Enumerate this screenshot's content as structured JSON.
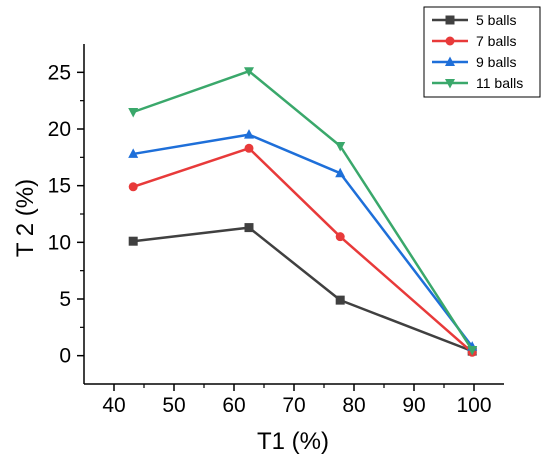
{
  "chart_data": {
    "type": "line",
    "xlabel": "T1 (%)",
    "ylabel": "T 2 (%)",
    "xlim": [
      35,
      105
    ],
    "ylim": [
      -2.5,
      27.5
    ],
    "xticks": [
      40,
      50,
      60,
      70,
      80,
      90,
      100
    ],
    "yticks": [
      0,
      5,
      10,
      15,
      20,
      25
    ],
    "x": [
      43.2,
      62.5,
      77.7,
      99.7
    ],
    "legend_position": "top-right",
    "series": [
      {
        "name": "5 balls",
        "values": [
          10.1,
          11.3,
          4.9,
          0.4
        ],
        "color": "#404040",
        "marker": "square"
      },
      {
        "name": "7 balls",
        "values": [
          14.9,
          18.3,
          10.5,
          0.3
        ],
        "color": "#e83a3a",
        "marker": "circle"
      },
      {
        "name": "9 balls",
        "values": [
          17.8,
          19.5,
          16.1,
          0.8
        ],
        "color": "#1e6fd9",
        "marker": "triangle-up"
      },
      {
        "name": "11 balls",
        "values": [
          21.5,
          25.1,
          18.5,
          0.5
        ],
        "color": "#3aa86b",
        "marker": "triangle-down"
      }
    ]
  }
}
